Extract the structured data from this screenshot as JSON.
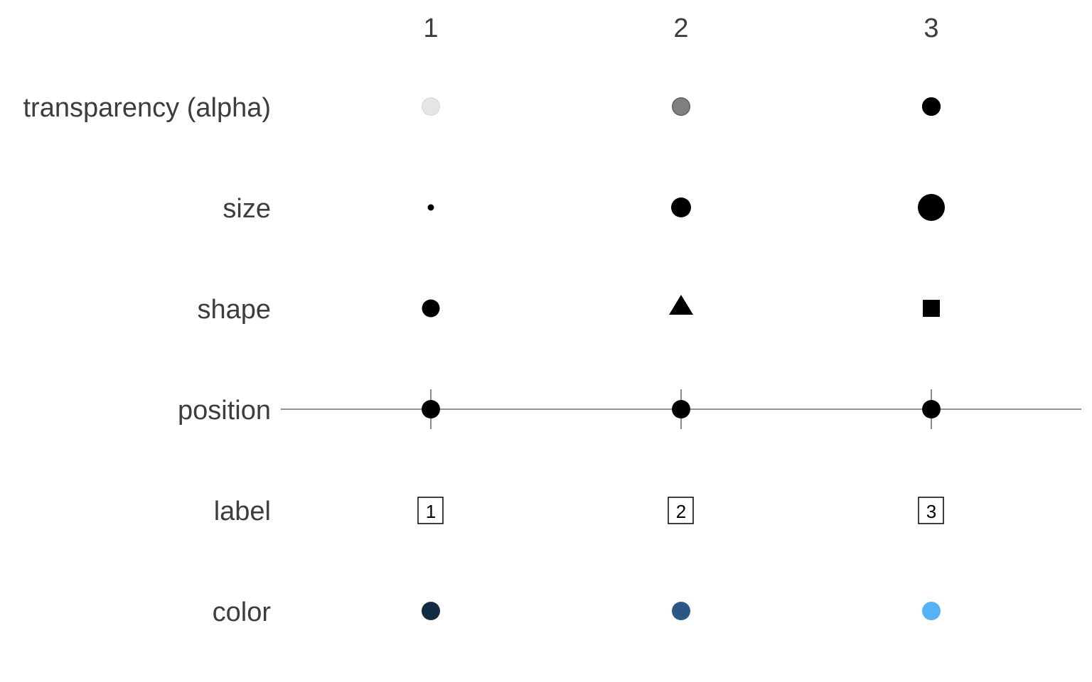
{
  "columns": [
    "1",
    "2",
    "3"
  ],
  "rows": {
    "alpha": {
      "label": "transparency (alpha)",
      "opacity": [
        0.1,
        0.5,
        1.0
      ],
      "fill": "#000000"
    },
    "size": {
      "label": "size",
      "relative_size": [
        1,
        3,
        4.5
      ]
    },
    "shape": {
      "label": "shape",
      "shapes": [
        "circle",
        "triangle",
        "square"
      ]
    },
    "position": {
      "label": "position",
      "line_color": "#4d4d4d"
    },
    "label": {
      "label": "label",
      "texts": [
        "1",
        "2",
        "3"
      ]
    },
    "color": {
      "label": "color",
      "colors": [
        "#132B43",
        "#2A5784",
        "#56B1F7"
      ]
    }
  }
}
